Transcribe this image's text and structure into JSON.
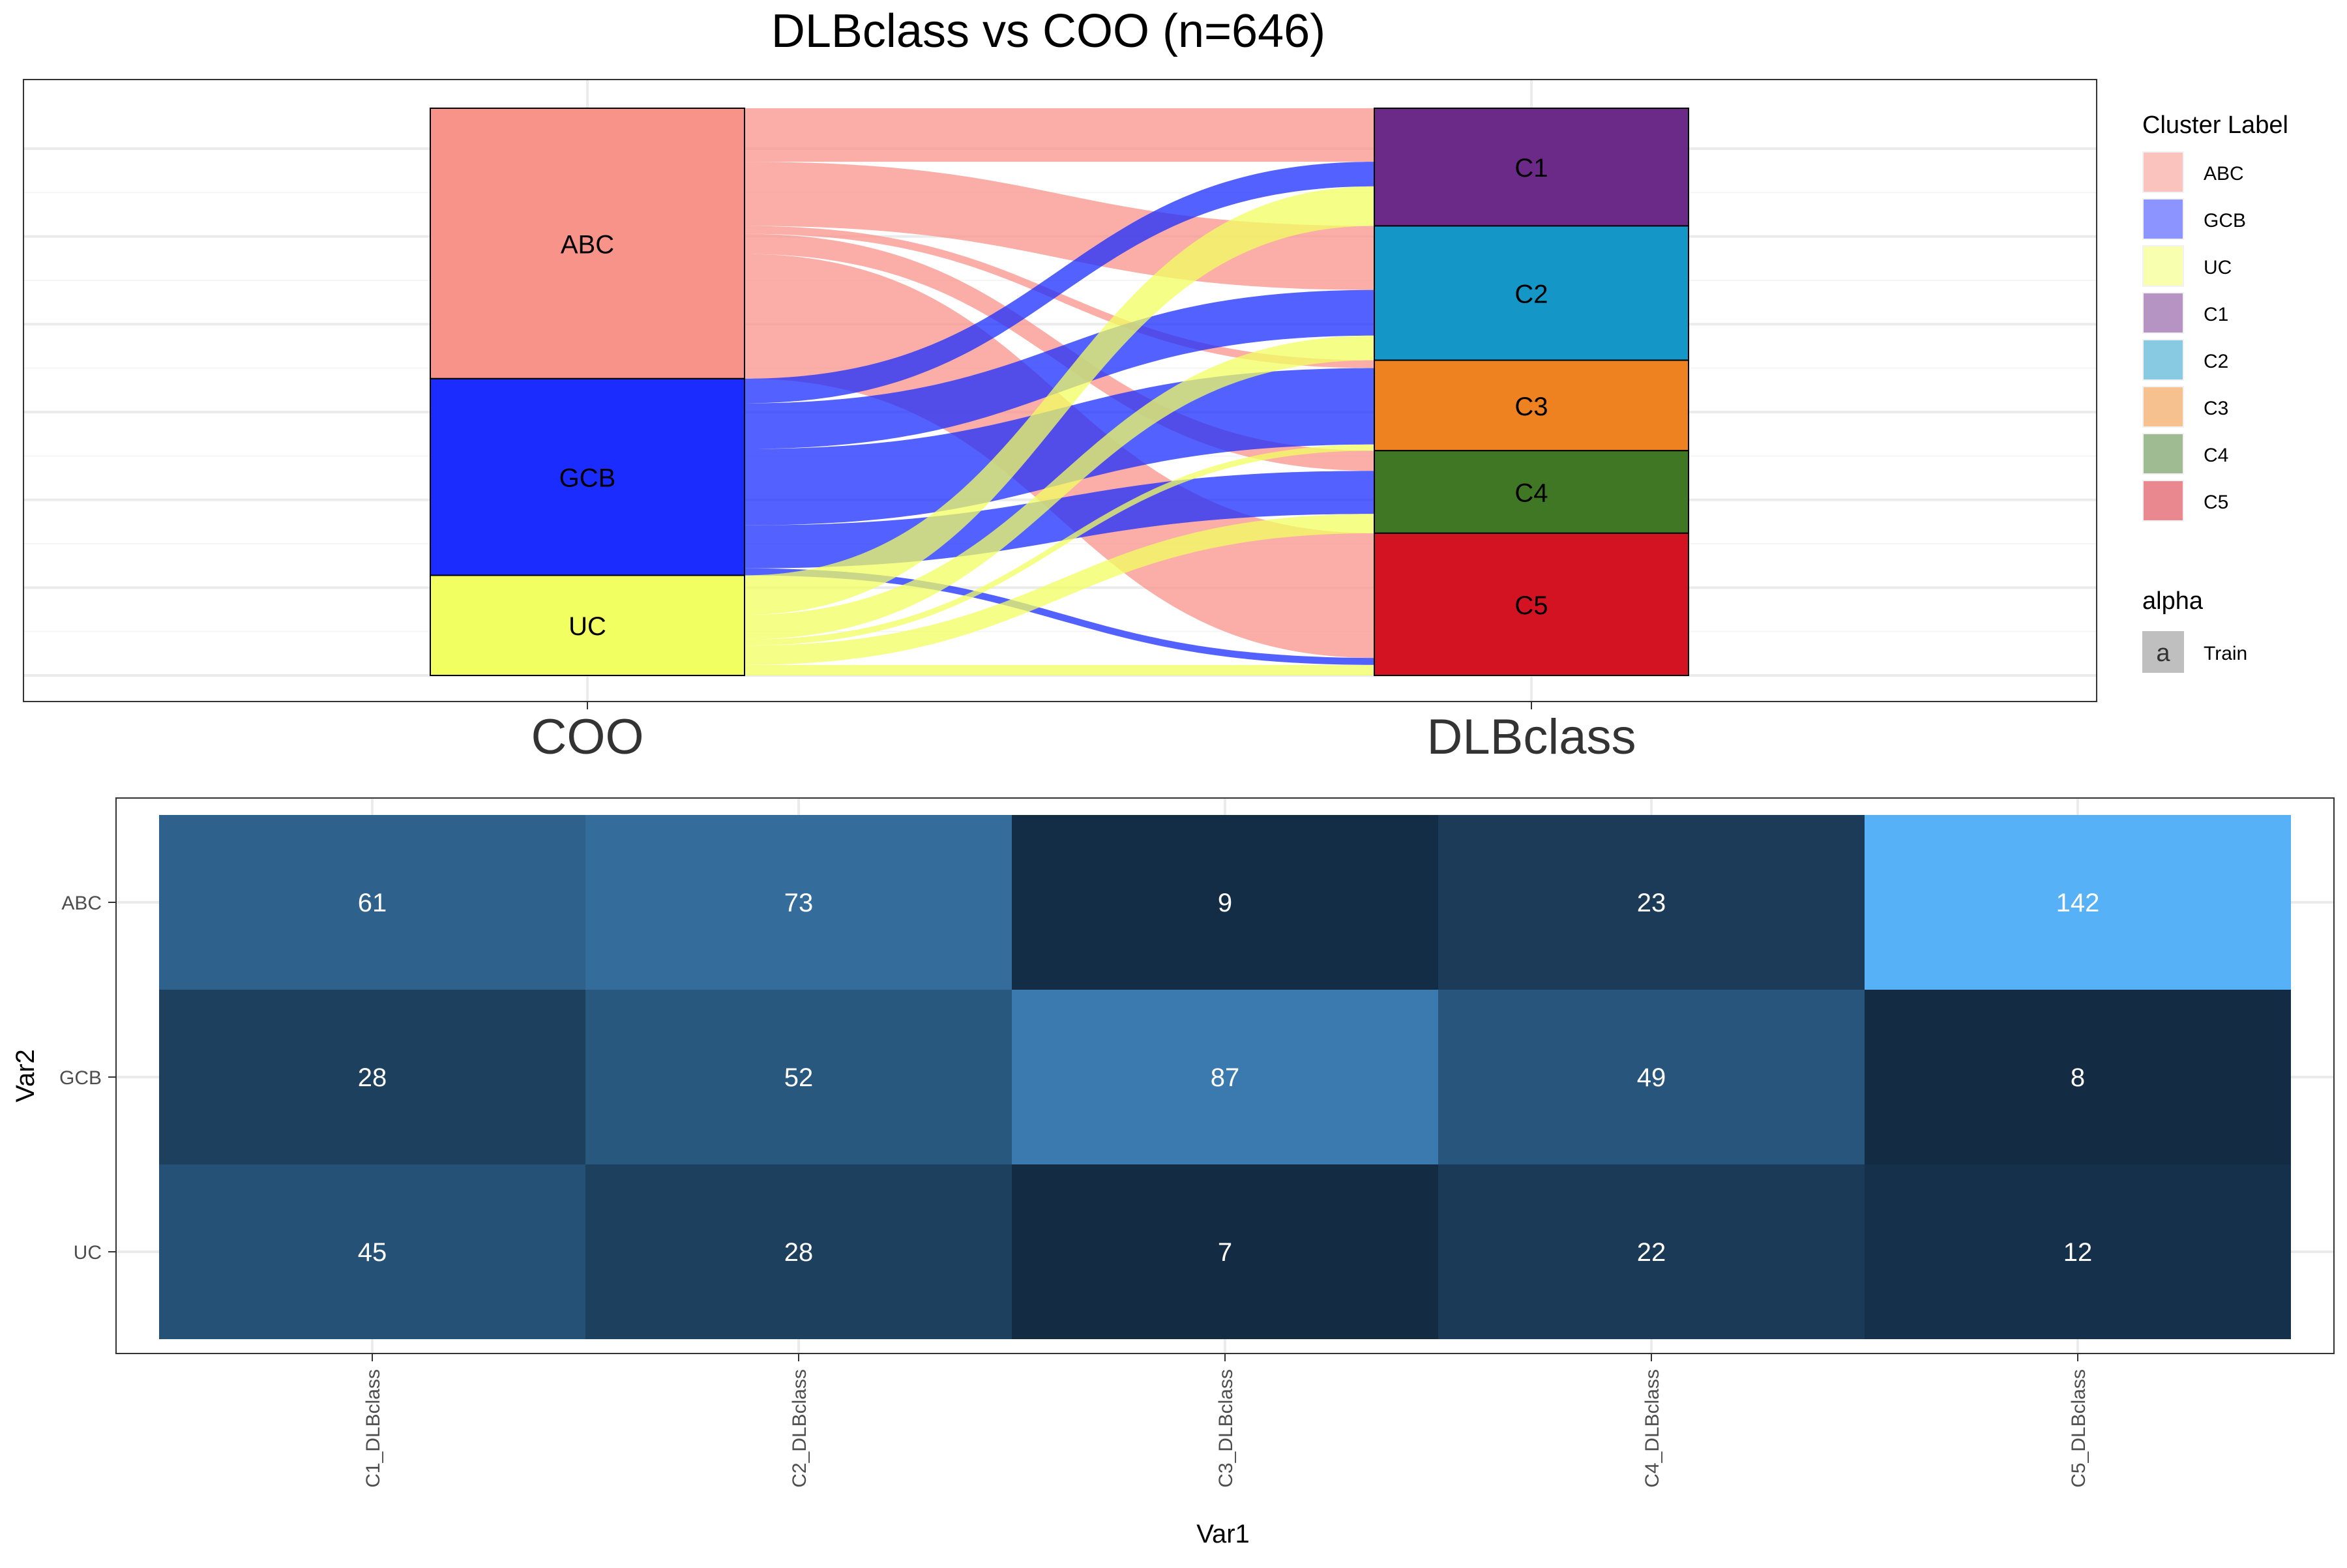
{
  "title": "DLBclass vs COO (n=646)",
  "chart_data": [
    {
      "type": "alluvial",
      "axes": [
        "COO",
        "DLBclass"
      ],
      "left_strata": [
        "ABC",
        "GCB",
        "UC"
      ],
      "right_strata": [
        "C1",
        "C2",
        "C3",
        "C4",
        "C5"
      ],
      "flows": [
        {
          "from": "ABC",
          "to": "C1",
          "value": 61
        },
        {
          "from": "ABC",
          "to": "C2",
          "value": 73
        },
        {
          "from": "ABC",
          "to": "C3",
          "value": 9
        },
        {
          "from": "ABC",
          "to": "C4",
          "value": 23
        },
        {
          "from": "ABC",
          "to": "C5",
          "value": 142
        },
        {
          "from": "GCB",
          "to": "C1",
          "value": 28
        },
        {
          "from": "GCB",
          "to": "C2",
          "value": 52
        },
        {
          "from": "GCB",
          "to": "C3",
          "value": 87
        },
        {
          "from": "GCB",
          "to": "C4",
          "value": 49
        },
        {
          "from": "GCB",
          "to": "C5",
          "value": 8
        },
        {
          "from": "UC",
          "to": "C1",
          "value": 45
        },
        {
          "from": "UC",
          "to": "C2",
          "value": 28
        },
        {
          "from": "UC",
          "to": "C3",
          "value": 7
        },
        {
          "from": "UC",
          "to": "C4",
          "value": 22
        },
        {
          "from": "UC",
          "to": "C5",
          "value": 12
        }
      ],
      "stratum_colors": {
        "ABC": "#F8938A",
        "GCB": "#1A2CFF",
        "UC": "#F1FF60",
        "C1": "#6B2A87",
        "C2": "#1496C7",
        "C3": "#EE8120",
        "C4": "#3F7724",
        "C5": "#D31321"
      },
      "flow_colors": {
        "ABC": "#F8938A",
        "GCB": "#1A2CFF",
        "UC": "#F1FF60"
      },
      "grid": true,
      "legend": {
        "position": "right",
        "title": "Cluster Label",
        "entries": [
          {
            "label": "ABC",
            "color": "#FBC3BE"
          },
          {
            "label": "GCB",
            "color": "#8C95FF"
          },
          {
            "label": "UC",
            "color": "#F8FFAF"
          },
          {
            "label": "C1",
            "color": "#B594C3"
          },
          {
            "label": "C2",
            "color": "#89CAE3"
          },
          {
            "label": "C3",
            "color": "#F6C08F"
          },
          {
            "label": "C4",
            "color": "#9FBB91"
          },
          {
            "label": "C5",
            "color": "#E9898F"
          }
        ],
        "alpha_title": "alpha",
        "alpha_key": "a",
        "alpha_entries": [
          "Train"
        ]
      }
    },
    {
      "type": "heatmap",
      "x": [
        "C1_DLBclass",
        "C2_DLBclass",
        "C3_DLBclass",
        "C4_DLBclass",
        "C5_DLBclass"
      ],
      "y": [
        "ABC",
        "GCB",
        "UC"
      ],
      "values": [
        [
          61,
          73,
          9,
          23,
          142
        ],
        [
          28,
          52,
          87,
          49,
          8
        ],
        [
          45,
          28,
          7,
          22,
          12
        ]
      ],
      "xlabel": "Var1",
      "ylabel": "Var2",
      "color_scale": {
        "low": "#132B43",
        "high": "#56B1F7"
      },
      "grid": true
    }
  ]
}
